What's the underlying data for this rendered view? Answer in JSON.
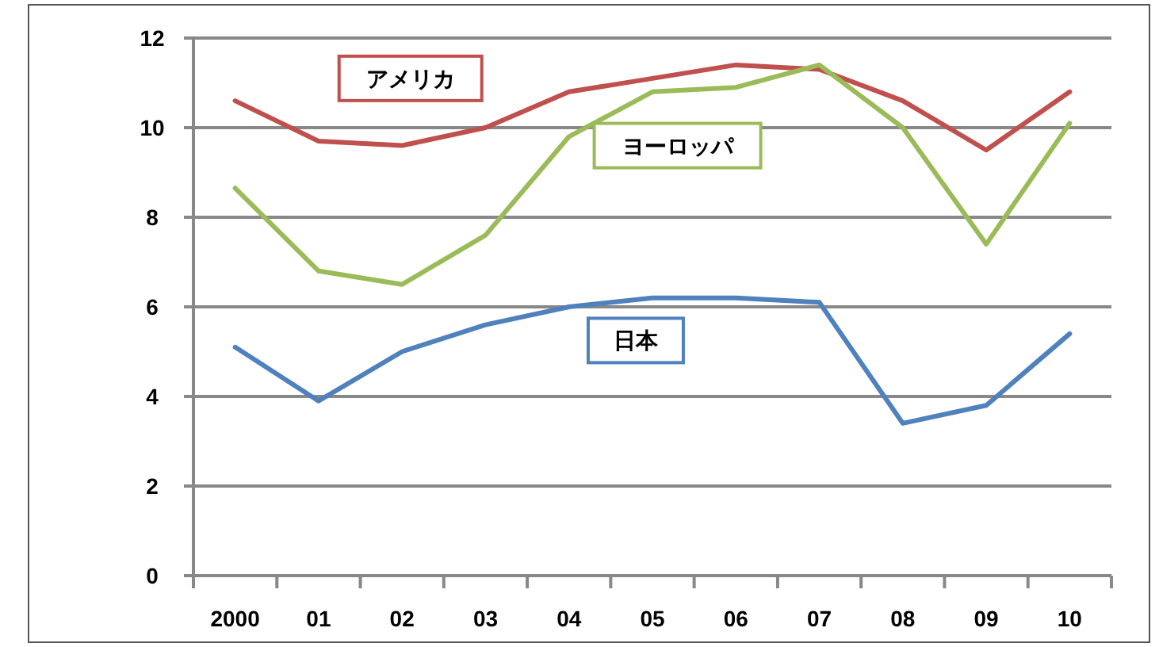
{
  "chart_data": {
    "type": "line",
    "categories": [
      "2000",
      "01",
      "02",
      "03",
      "04",
      "05",
      "06",
      "07",
      "08",
      "09",
      "10"
    ],
    "series": [
      {
        "name": "アメリカ",
        "color": "#c0504d",
        "values": [
          10.6,
          9.7,
          9.6,
          10.0,
          10.8,
          11.1,
          11.4,
          11.3,
          10.6,
          9.5,
          10.8
        ]
      },
      {
        "name": "ヨーロッパ",
        "color": "#9bbb59",
        "values": [
          8.65,
          6.8,
          6.5,
          7.6,
          9.8,
          10.8,
          10.9,
          11.4,
          10.0,
          7.4,
          10.1
        ]
      },
      {
        "name": "日本",
        "color": "#4f81bd",
        "values": [
          5.1,
          3.9,
          5.0,
          5.6,
          6.0,
          6.2,
          6.2,
          6.1,
          3.4,
          3.8,
          5.4
        ]
      }
    ],
    "ylim": [
      0,
      12
    ],
    "yticks": [
      0,
      2,
      4,
      6,
      8,
      10,
      12
    ],
    "grid": "y",
    "legend": false,
    "marker": "none",
    "line_style": "solid"
  }
}
